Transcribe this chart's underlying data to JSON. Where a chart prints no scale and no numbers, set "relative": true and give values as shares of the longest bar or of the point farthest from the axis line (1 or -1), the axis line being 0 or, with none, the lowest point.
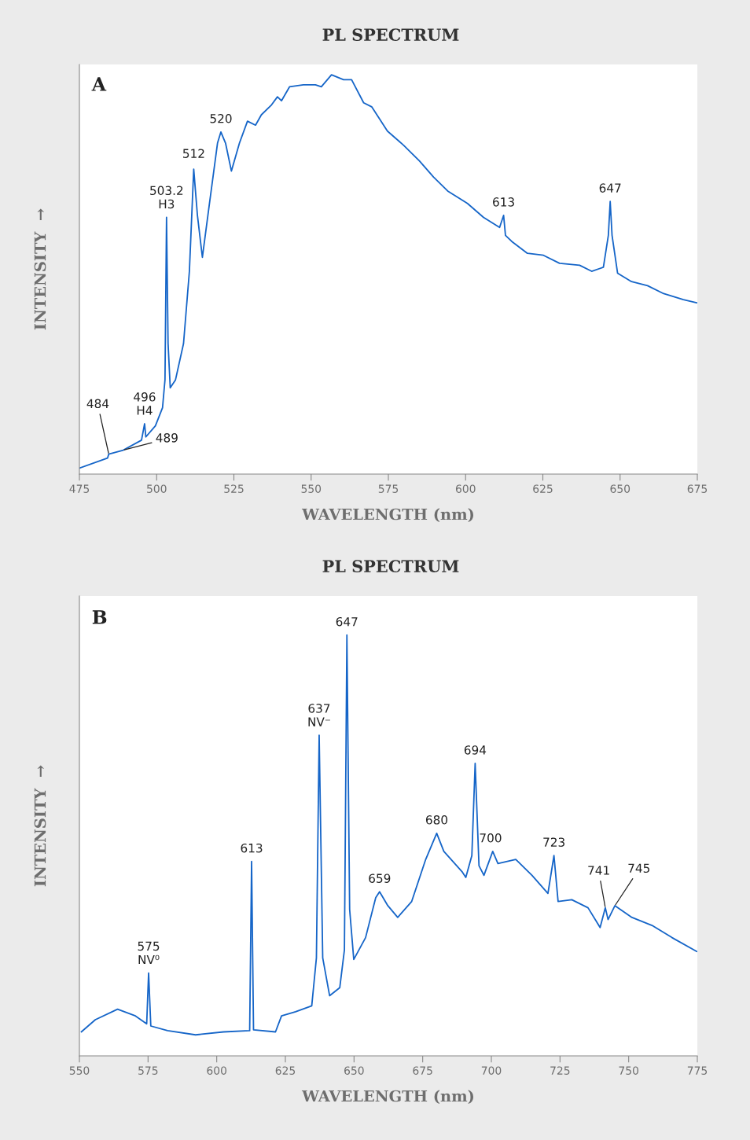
{
  "chart_data": [
    {
      "type": "line",
      "title": "PL SPECTRUM",
      "xlabel": "WAVELENGTH (nm)",
      "ylabel": "INTENSITY  →",
      "relative": true,
      "grid": false,
      "legend": false,
      "xlim": [
        475,
        675
      ],
      "xticks": [
        475,
        500,
        525,
        550,
        575,
        600,
        625,
        650,
        675
      ],
      "series": [
        {
          "color": "#1565c8",
          "x": [
            475,
            484.1,
            484.5,
            489.2,
            495.1,
            496.1,
            496.5,
            499.6,
            501.9,
            502.7,
            503.2,
            503.7,
            504.4,
            506.1,
            508.7,
            510.6,
            512.0,
            513.2,
            514.8,
            517.1,
            519.7,
            520.8,
            522.3,
            524.2,
            526.8,
            529.4,
            532.0,
            533.9,
            537.2,
            539.1,
            540.4,
            543.0,
            547.5,
            551.4,
            553.3,
            556.6,
            560.5,
            563.1,
            567.0,
            569.6,
            574.7,
            579.9,
            585.1,
            589.6,
            594.2,
            600.6,
            605.8,
            611.0,
            612.3,
            612.9,
            614.9,
            620.0,
            625.2,
            630.4,
            636.9,
            640.8,
            644.6,
            646.2,
            646.8,
            647.4,
            649.2,
            653.7,
            658.9,
            664.1,
            670.5,
            674.8
          ],
          "values": [
            0.015,
            0.04,
            0.05,
            0.06,
            0.085,
            0.126,
            0.093,
            0.121,
            0.166,
            0.236,
            0.643,
            0.327,
            0.216,
            0.236,
            0.327,
            0.508,
            0.764,
            0.648,
            0.543,
            0.678,
            0.829,
            0.857,
            0.829,
            0.759,
            0.829,
            0.884,
            0.874,
            0.9,
            0.925,
            0.945,
            0.935,
            0.97,
            0.975,
            0.975,
            0.97,
            1.0,
            0.988,
            0.988,
            0.93,
            0.92,
            0.859,
            0.824,
            0.784,
            0.744,
            0.709,
            0.678,
            0.643,
            0.618,
            0.648,
            0.598,
            0.583,
            0.553,
            0.548,
            0.528,
            0.523,
            0.508,
            0.518,
            0.598,
            0.683,
            0.598,
            0.503,
            0.482,
            0.472,
            0.452,
            0.437,
            0.429
          ]
        }
      ],
      "annotations": [
        "A",
        {
          "text": "484",
          "x": 484.5,
          "y": 0.05
        },
        {
          "text": "489",
          "x": 489.2,
          "y": 0.06
        },
        {
          "text": "496\nH4",
          "x": 496.1,
          "y": 0.126
        },
        {
          "text": "503.2\nH3",
          "x": 503.2,
          "y": 0.643
        },
        {
          "text": "512",
          "x": 512.0,
          "y": 0.764
        },
        {
          "text": "520",
          "x": 520.8,
          "y": 0.857
        },
        {
          "text": "613",
          "x": 612.3,
          "y": 0.648
        },
        {
          "text": "647",
          "x": 646.8,
          "y": 0.683
        }
      ]
    },
    {
      "type": "line",
      "title": "PL SPECTRUM",
      "xlabel": "WAVELENGTH (nm)",
      "ylabel": "INTENSITY  →",
      "relative": true,
      "grid": false,
      "legend": false,
      "xlim": [
        550,
        775
      ],
      "xticks": [
        550,
        575,
        600,
        625,
        650,
        675,
        700,
        725,
        750,
        775
      ],
      "series": [
        {
          "color": "#1565c8",
          "x": [
            550.7,
            555.8,
            563.9,
            570.4,
            574.5,
            575.2,
            576.0,
            582.1,
            592.3,
            602.5,
            612.0,
            612.7,
            613.4,
            621.4,
            623.6,
            628.7,
            634.6,
            636.3,
            637.3,
            638.6,
            641.1,
            644.8,
            646.5,
            647.4,
            648.4,
            649.9,
            654.2,
            657.9,
            659.3,
            662.3,
            665.9,
            671.0,
            676.1,
            680.1,
            682.7,
            689.3,
            690.7,
            692.9,
            694.1,
            695.5,
            697.3,
            700.5,
            702.4,
            708.9,
            714.8,
            720.6,
            722.8,
            724.3,
            729.3,
            735.2,
            739.6,
            741.5,
            742.5,
            745.0,
            751.2,
            758.5,
            765.8,
            774.8
          ],
          "values": [
            0.057,
            0.086,
            0.111,
            0.095,
            0.076,
            0.197,
            0.071,
            0.06,
            0.05,
            0.057,
            0.06,
            0.462,
            0.062,
            0.057,
            0.095,
            0.105,
            0.119,
            0.233,
            0.762,
            0.233,
            0.143,
            0.162,
            0.252,
            1.0,
            0.348,
            0.229,
            0.281,
            0.376,
            0.39,
            0.357,
            0.329,
            0.367,
            0.467,
            0.529,
            0.486,
            0.438,
            0.424,
            0.476,
            0.695,
            0.452,
            0.429,
            0.486,
            0.457,
            0.467,
            0.429,
            0.386,
            0.476,
            0.367,
            0.371,
            0.352,
            0.305,
            0.352,
            0.324,
            0.357,
            0.329,
            0.31,
            0.281,
            0.248
          ]
        }
      ],
      "annotations": [
        "B",
        {
          "text": "575\nNV⁰",
          "x": 575.2,
          "y": 0.197
        },
        {
          "text": "613",
          "x": 612.7,
          "y": 0.462
        },
        {
          "text": "637\nNV⁻",
          "x": 637.3,
          "y": 0.762
        },
        {
          "text": "647",
          "x": 647.4,
          "y": 1.0
        },
        {
          "text": "659",
          "x": 659.3,
          "y": 0.39
        },
        {
          "text": "680",
          "x": 680.1,
          "y": 0.529
        },
        {
          "text": "694",
          "x": 694.1,
          "y": 0.695
        },
        {
          "text": "700",
          "x": 700.5,
          "y": 0.486
        },
        {
          "text": "723",
          "x": 722.8,
          "y": 0.476
        },
        {
          "text": "741",
          "x": 741.5,
          "y": 0.352
        },
        {
          "text": "745",
          "x": 745.0,
          "y": 0.357
        }
      ]
    }
  ]
}
